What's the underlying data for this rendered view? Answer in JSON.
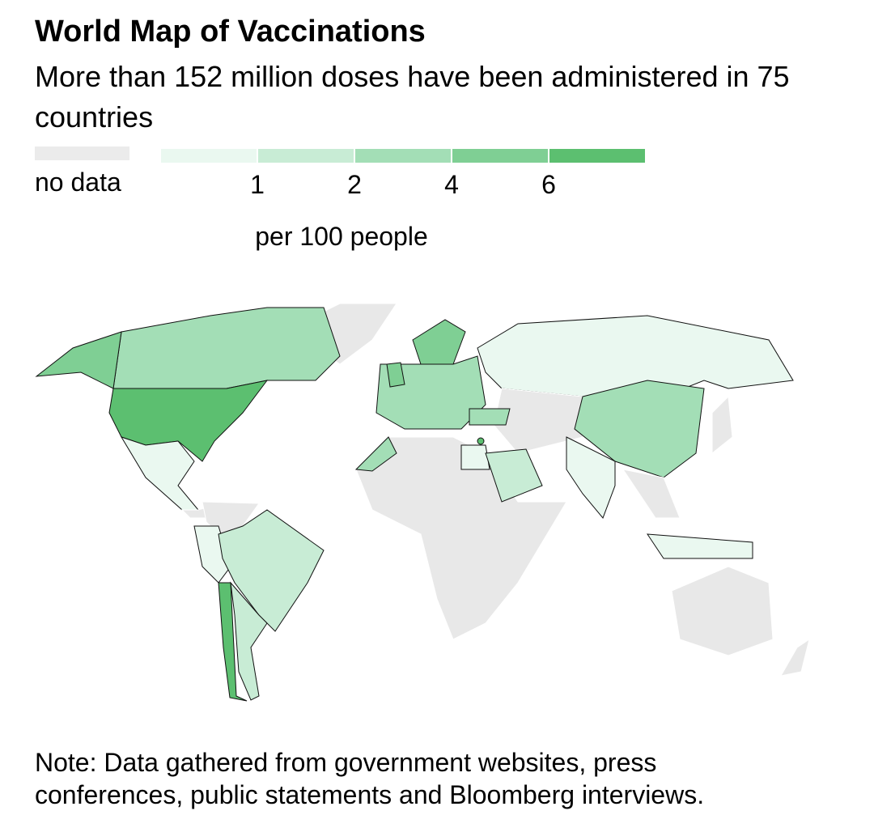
{
  "title": "World Map of Vaccinations",
  "subtitle": "More than 152 million doses have been administered in 75 countries",
  "legend": {
    "no_data": {
      "label": "no data",
      "color": "#ebebeb"
    },
    "colors": [
      "#eaf8f0",
      "#c8ecd5",
      "#a3deb6",
      "#7fcf94",
      "#5cbf70"
    ],
    "breaks": [
      1,
      2,
      4,
      6
    ],
    "unit": "per 100 people"
  },
  "note": "Note: Data gathered from government websites, press conferences, public statements and Bloomberg interviews."
}
